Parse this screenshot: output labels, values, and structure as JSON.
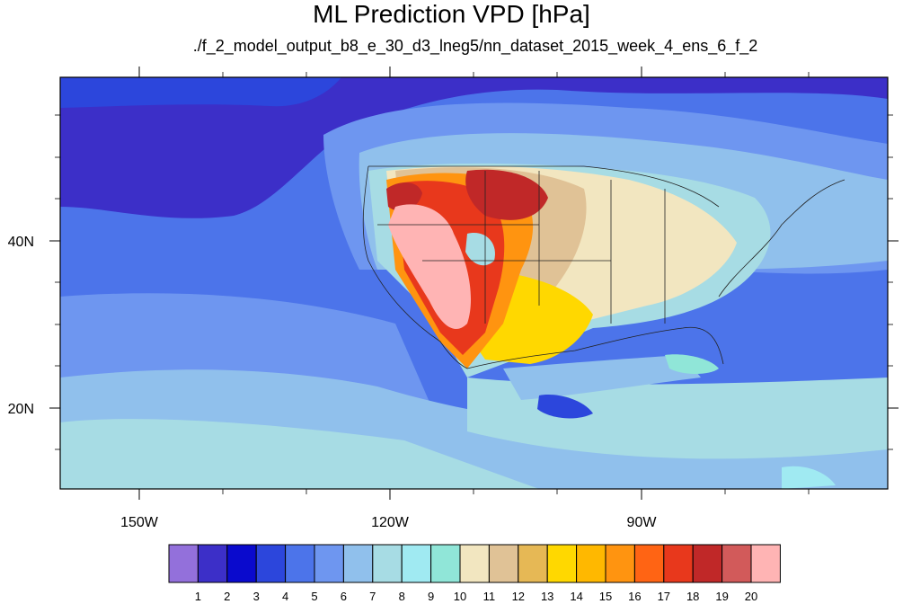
{
  "title": "ML Prediction VPD [hPa]",
  "subtitle": "./f_2_model_output_b8_e_30_d3_lneg5/nn_dataset_2015_week_4_ens_6_f_2",
  "lon_labels": [
    "150W",
    "120W",
    "90W"
  ],
  "lat_labels": [
    "40N",
    "20N"
  ],
  "colorbar": {
    "labels": [
      "1",
      "2",
      "3",
      "4",
      "5",
      "6",
      "7",
      "8",
      "9",
      "10",
      "11",
      "12",
      "13",
      "14",
      "15",
      "16",
      "17",
      "18",
      "19",
      "20"
    ],
    "colors": [
      "#9370db",
      "#3c2fc8",
      "#0a0acd",
      "#2c46dc",
      "#4c74ea",
      "#6e96f0",
      "#90c0ec",
      "#a7dce4",
      "#a0eaf2",
      "#90e6d8",
      "#f2e6c0",
      "#e0c296",
      "#e6b855",
      "#ffd800",
      "#ffb800",
      "#ff9410",
      "#ff6414",
      "#e8381c",
      "#c02828",
      "#d25a5a",
      "#ffb4b4"
    ]
  }
}
